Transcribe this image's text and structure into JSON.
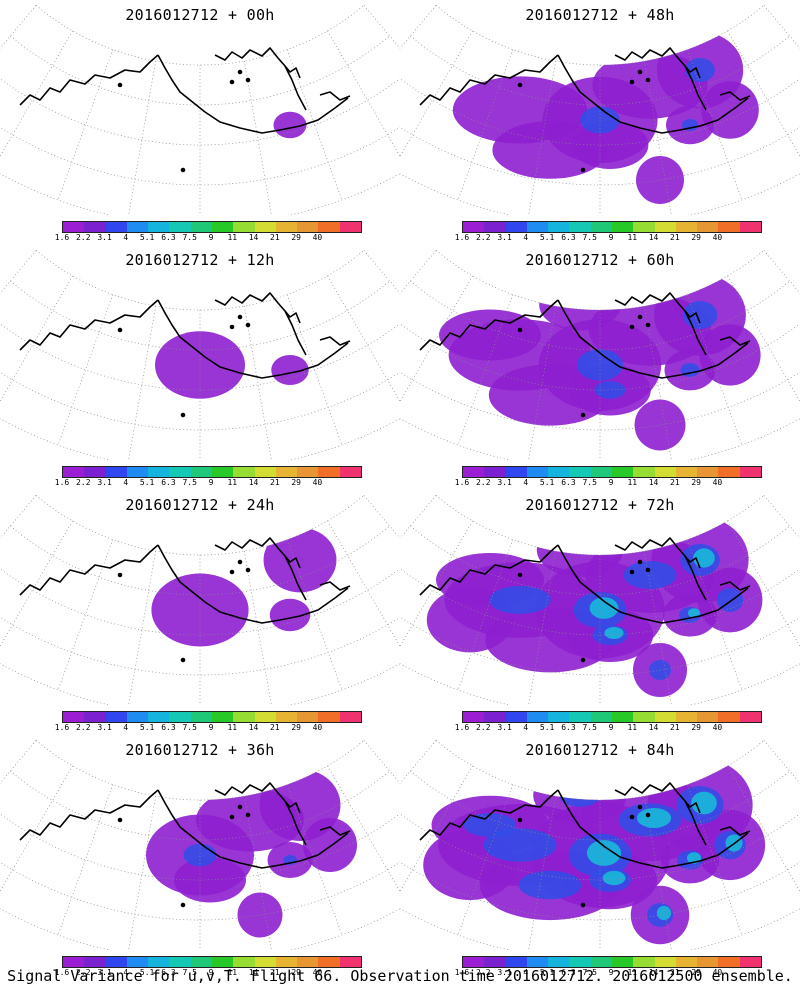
{
  "panels": [
    {
      "title": "2016012712 + 00h",
      "intensity": 0.1
    },
    {
      "title": "2016012712 + 48h",
      "intensity": 0.6
    },
    {
      "title": "2016012712 + 12h",
      "intensity": 0.25
    },
    {
      "title": "2016012712 + 60h",
      "intensity": 0.7
    },
    {
      "title": "2016012712 + 24h",
      "intensity": 0.35
    },
    {
      "title": "2016012712 + 72h",
      "intensity": 0.8
    },
    {
      "title": "2016012712 + 36h",
      "intensity": 0.5
    },
    {
      "title": "2016012712 + 84h",
      "intensity": 0.95
    }
  ],
  "legend": {
    "labels": [
      "1.6",
      "2.2",
      "3.1",
      "4",
      "5.1",
      "6.3",
      "7.5",
      "9",
      "11",
      "14",
      "21",
      "29",
      "40"
    ],
    "colors": [
      "#9b1ed2",
      "#7b22d0",
      "#3246f0",
      "#1e8cf0",
      "#14b4dc",
      "#14c8b4",
      "#1ec878",
      "#28c828",
      "#96dc32",
      "#d2dc32",
      "#e6b432",
      "#e69632",
      "#f06e28",
      "#f0326e"
    ]
  },
  "footer": "Signal Variance for u,v,T. Flight 66. Observation time 2016012712. 2016012500 ensemble."
}
